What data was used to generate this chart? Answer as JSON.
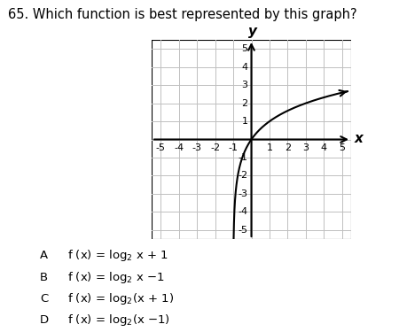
{
  "title": "65. Which function is best represented by this graph?",
  "title_fontsize": 10.5,
  "xmin": -5.5,
  "xmax": 5.5,
  "ymin": -5.5,
  "ymax": 5.5,
  "xticks": [
    -5,
    -4,
    -3,
    -2,
    -1,
    1,
    2,
    3,
    4,
    5
  ],
  "yticks": [
    -5,
    -4,
    -3,
    -2,
    -1,
    1,
    2,
    3,
    4,
    5
  ],
  "xlabel": "x",
  "ylabel": "y",
  "grid_color": "#c0c0c0",
  "axis_color": "#000000",
  "curve_color": "#000000",
  "tick_fontsize": 8,
  "answer_fontsize": 9.5,
  "answers": [
    [
      "A",
      "f (x) = log",
      "2",
      " x + 1"
    ],
    [
      "B",
      "f (x) = log",
      "2",
      " x −1"
    ],
    [
      "C",
      "f (x) = log",
      "2",
      "(x + 1)"
    ],
    [
      "D",
      "f (x) = log",
      "2",
      "(x −1)"
    ]
  ]
}
